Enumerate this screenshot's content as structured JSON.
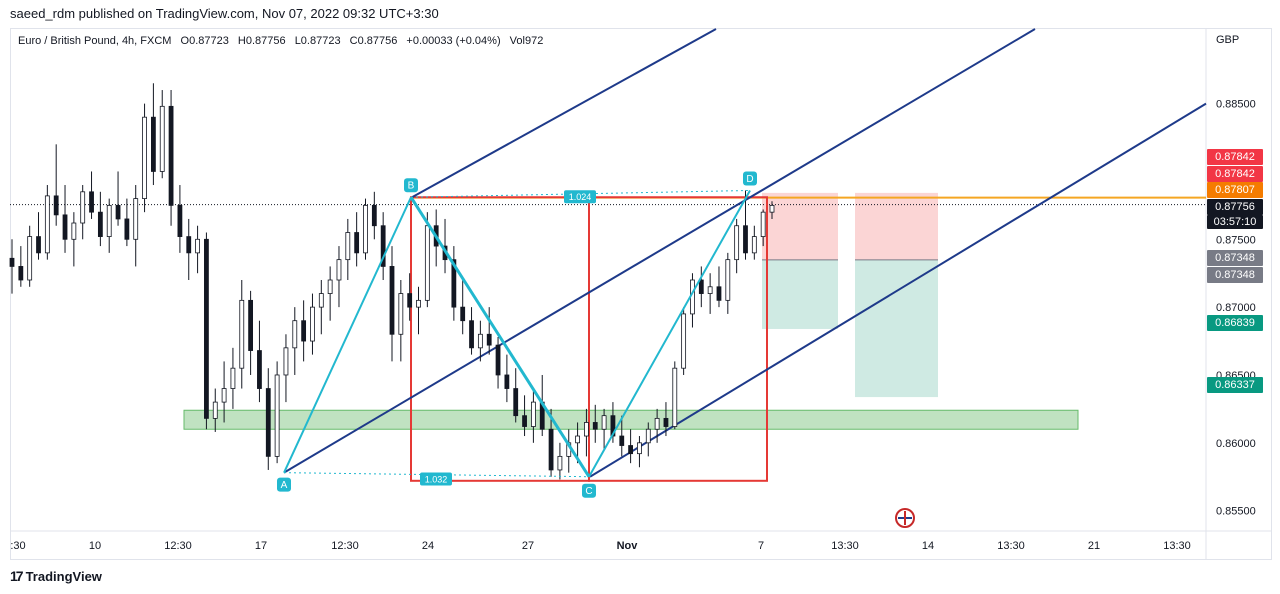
{
  "header": {
    "credit": "saeed_rdm published on TradingView.com, Nov 07, 2022 09:32 UTC+3:30",
    "symbol": "Euro / British Pound, 4h, FXCM",
    "open": "O0.87723",
    "high": "H0.87756",
    "low": "L0.87723",
    "close": "C0.87756",
    "change": "+0.00033 (+0.04%)",
    "volume": "Vol972",
    "currency": "GBP"
  },
  "footer": {
    "brand": "TradingView",
    "icon": "tradingview-logo-icon"
  },
  "colors": {
    "up": "#131722",
    "channel": "#1e3a8a",
    "harmonic": "#22b8cf",
    "rect": "#e53935",
    "zone": "#a5d6a7",
    "orange": "#f5a623",
    "stop": "#fbd5d5",
    "target": "#cfeae3"
  },
  "chart_data": {
    "type": "candlestick",
    "ylim": [
      0.8535,
      0.8905
    ],
    "y_ticks": [
      "0.85500",
      "0.86000",
      "0.86500",
      "0.87000",
      "0.87500",
      "0.88500"
    ],
    "x_ticks": [
      ":30",
      "10",
      "12:30",
      "17",
      "12:30",
      "24",
      "27",
      "Nov",
      "7",
      "13:30",
      "14",
      "13:30",
      "21",
      "13:30"
    ],
    "x_tick_bold": [
      false,
      false,
      false,
      false,
      false,
      false,
      false,
      true,
      false,
      false,
      false,
      false,
      false,
      false
    ],
    "price_labels": [
      {
        "value": "0.87842",
        "color": "#f23645"
      },
      {
        "value": "0.87842",
        "color": "#f23645"
      },
      {
        "value": "0.87807",
        "color": "#f57c00"
      },
      {
        "value": "0.87756",
        "color": "#131722",
        "time": "03:57:10"
      },
      {
        "value": "0.87348",
        "color": "#787b86"
      },
      {
        "value": "0.87348",
        "color": "#787b86"
      },
      {
        "value": "0.86839",
        "color": "#089981"
      },
      {
        "value": "0.86337",
        "color": "#089981"
      }
    ],
    "pattern_points": [
      {
        "label": "A",
        "price": 0.8578
      },
      {
        "label": "B",
        "price": 0.8781
      },
      {
        "label": "C",
        "price": 0.8575
      },
      {
        "label": "D",
        "price": 0.8786
      }
    ],
    "ratios": [
      "1.024",
      "1.032"
    ],
    "demand_zone": [
      0.861,
      0.8624
    ],
    "candles": [
      [
        0.8736,
        0.875,
        0.871,
        0.873
      ],
      [
        0.873,
        0.8745,
        0.8715,
        0.872
      ],
      [
        0.872,
        0.876,
        0.8715,
        0.8752
      ],
      [
        0.8752,
        0.877,
        0.8735,
        0.874
      ],
      [
        0.874,
        0.879,
        0.8735,
        0.8782
      ],
      [
        0.8782,
        0.882,
        0.876,
        0.8768
      ],
      [
        0.8768,
        0.879,
        0.874,
        0.875
      ],
      [
        0.875,
        0.877,
        0.873,
        0.8762
      ],
      [
        0.8762,
        0.879,
        0.875,
        0.8785
      ],
      [
        0.8785,
        0.88,
        0.8765,
        0.877
      ],
      [
        0.877,
        0.8785,
        0.8745,
        0.8752
      ],
      [
        0.8752,
        0.878,
        0.874,
        0.8775
      ],
      [
        0.8775,
        0.88,
        0.876,
        0.8765
      ],
      [
        0.8765,
        0.878,
        0.8745,
        0.875
      ],
      [
        0.875,
        0.879,
        0.873,
        0.878
      ],
      [
        0.878,
        0.885,
        0.877,
        0.884
      ],
      [
        0.884,
        0.8865,
        0.879,
        0.88
      ],
      [
        0.88,
        0.886,
        0.8795,
        0.8848
      ],
      [
        0.8848,
        0.886,
        0.876,
        0.8775
      ],
      [
        0.8775,
        0.879,
        0.874,
        0.8752
      ],
      [
        0.8752,
        0.8765,
        0.872,
        0.874
      ],
      [
        0.874,
        0.876,
        0.8725,
        0.875
      ],
      [
        0.875,
        0.8755,
        0.861,
        0.8618
      ],
      [
        0.8618,
        0.864,
        0.8608,
        0.863
      ],
      [
        0.863,
        0.866,
        0.8615,
        0.864
      ],
      [
        0.864,
        0.867,
        0.8625,
        0.8655
      ],
      [
        0.8655,
        0.872,
        0.864,
        0.8705
      ],
      [
        0.8705,
        0.8712,
        0.865,
        0.8668
      ],
      [
        0.8668,
        0.869,
        0.863,
        0.864
      ],
      [
        0.864,
        0.8655,
        0.858,
        0.859
      ],
      [
        0.859,
        0.866,
        0.8585,
        0.865
      ],
      [
        0.865,
        0.868,
        0.863,
        0.867
      ],
      [
        0.867,
        0.87,
        0.865,
        0.869
      ],
      [
        0.869,
        0.8705,
        0.866,
        0.8675
      ],
      [
        0.8675,
        0.871,
        0.8665,
        0.87
      ],
      [
        0.87,
        0.872,
        0.868,
        0.871
      ],
      [
        0.871,
        0.873,
        0.869,
        0.872
      ],
      [
        0.872,
        0.8745,
        0.87,
        0.8735
      ],
      [
        0.8735,
        0.8765,
        0.872,
        0.8755
      ],
      [
        0.8755,
        0.877,
        0.873,
        0.874
      ],
      [
        0.874,
        0.878,
        0.8735,
        0.8775
      ],
      [
        0.8775,
        0.8785,
        0.875,
        0.876
      ],
      [
        0.876,
        0.877,
        0.872,
        0.873
      ],
      [
        0.873,
        0.8745,
        0.866,
        0.868
      ],
      [
        0.868,
        0.872,
        0.866,
        0.871
      ],
      [
        0.871,
        0.8725,
        0.869,
        0.87
      ],
      [
        0.87,
        0.8715,
        0.868,
        0.8705
      ],
      [
        0.8705,
        0.877,
        0.87,
        0.876
      ],
      [
        0.876,
        0.8772,
        0.873,
        0.8745
      ],
      [
        0.8745,
        0.8765,
        0.8725,
        0.8735
      ],
      [
        0.8735,
        0.8745,
        0.869,
        0.87
      ],
      [
        0.87,
        0.872,
        0.868,
        0.869
      ],
      [
        0.869,
        0.87,
        0.8665,
        0.867
      ],
      [
        0.867,
        0.869,
        0.866,
        0.868
      ],
      [
        0.868,
        0.87,
        0.8665,
        0.8672
      ],
      [
        0.8672,
        0.8678,
        0.864,
        0.865
      ],
      [
        0.865,
        0.8665,
        0.863,
        0.864
      ],
      [
        0.864,
        0.8655,
        0.8615,
        0.862
      ],
      [
        0.862,
        0.8635,
        0.8605,
        0.8612
      ],
      [
        0.8612,
        0.864,
        0.86,
        0.863
      ],
      [
        0.863,
        0.865,
        0.8605,
        0.861
      ],
      [
        0.861,
        0.8625,
        0.8575,
        0.858
      ],
      [
        0.858,
        0.86,
        0.8573,
        0.859
      ],
      [
        0.859,
        0.861,
        0.8578,
        0.86
      ],
      [
        0.86,
        0.8615,
        0.8585,
        0.8605
      ],
      [
        0.8605,
        0.8625,
        0.859,
        0.8615
      ],
      [
        0.8615,
        0.8628,
        0.86,
        0.861
      ],
      [
        0.861,
        0.8625,
        0.8595,
        0.862
      ],
      [
        0.862,
        0.863,
        0.86,
        0.8605
      ],
      [
        0.8605,
        0.862,
        0.859,
        0.8598
      ],
      [
        0.8598,
        0.861,
        0.8585,
        0.8592
      ],
      [
        0.8592,
        0.8605,
        0.8582,
        0.86
      ],
      [
        0.86,
        0.8615,
        0.859,
        0.861
      ],
      [
        0.861,
        0.8625,
        0.86,
        0.8618
      ],
      [
        0.8618,
        0.863,
        0.8605,
        0.8612
      ],
      [
        0.8612,
        0.866,
        0.861,
        0.8655
      ],
      [
        0.8655,
        0.87,
        0.865,
        0.8695
      ],
      [
        0.8695,
        0.8725,
        0.8685,
        0.872
      ],
      [
        0.872,
        0.873,
        0.87,
        0.871
      ],
      [
        0.871,
        0.8725,
        0.8695,
        0.8715
      ],
      [
        0.8715,
        0.873,
        0.87,
        0.8705
      ],
      [
        0.8705,
        0.874,
        0.8695,
        0.8735
      ],
      [
        0.8735,
        0.8765,
        0.8725,
        0.876
      ],
      [
        0.876,
        0.8786,
        0.8735,
        0.874
      ],
      [
        0.874,
        0.876,
        0.8735,
        0.8752
      ],
      [
        0.8752,
        0.8772,
        0.8745,
        0.877
      ],
      [
        0.877,
        0.8778,
        0.8765,
        0.8775
      ]
    ]
  }
}
